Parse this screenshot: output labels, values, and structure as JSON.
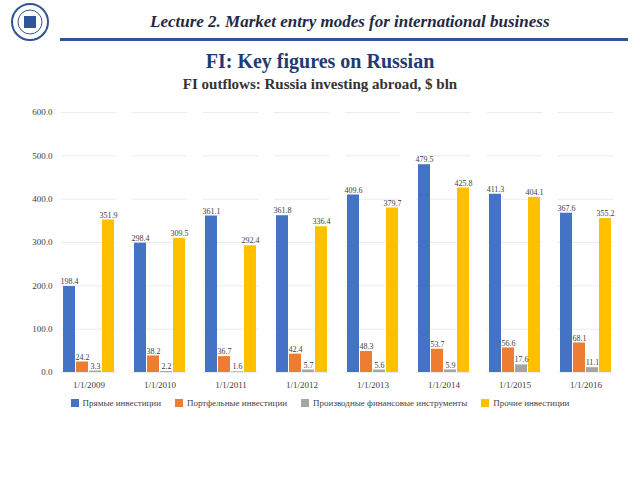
{
  "slide": {
    "header": "Lecture 2. Market entry modes for international business",
    "heading": "FI: Key figures on Russian"
  },
  "chart_data": {
    "type": "bar",
    "title": "FI outflows: Russia investing abroad, $ bln",
    "categories": [
      "1/1/2009",
      "1/1/2010",
      "1/1/2011",
      "1/1/2012",
      "1/1/2013",
      "1/1/2014",
      "1/1/2015",
      "1/1/2016"
    ],
    "series": [
      {
        "name": "Прямые инвестиции",
        "color": "#4472c4",
        "values": [
          198.4,
          298.4,
          361.1,
          361.8,
          409.6,
          479.5,
          411.3,
          367.6
        ]
      },
      {
        "name": "Портфельные инвестиции",
        "color": "#ed7d31",
        "values": [
          24.2,
          38.2,
          36.7,
          42.4,
          48.3,
          53.7,
          56.6,
          68.1
        ]
      },
      {
        "name": "Производные финансовые инструменты",
        "color": "#a5a5a5",
        "values": [
          3.3,
          2.2,
          1.6,
          5.7,
          5.6,
          5.9,
          17.6,
          11.1
        ]
      },
      {
        "name": "Прочие инвестиции",
        "color": "#ffc000",
        "values": [
          351.9,
          309.5,
          292.4,
          336.4,
          379.7,
          425.8,
          404.1,
          355.2
        ]
      }
    ],
    "ylim": [
      0,
      600
    ],
    "yticks": [
      {
        "value": 0,
        "label": "0.0"
      },
      {
        "value": 100,
        "label": "100.0"
      },
      {
        "value": 200,
        "label": "200.0"
      },
      {
        "value": 300,
        "label": "300.0"
      },
      {
        "value": 400,
        "label": "400.0"
      },
      {
        "value": 500,
        "label": "500.0"
      },
      {
        "value": 600,
        "label": "600.0"
      }
    ],
    "grid": true,
    "data_labels": true,
    "legend": "bottom"
  }
}
